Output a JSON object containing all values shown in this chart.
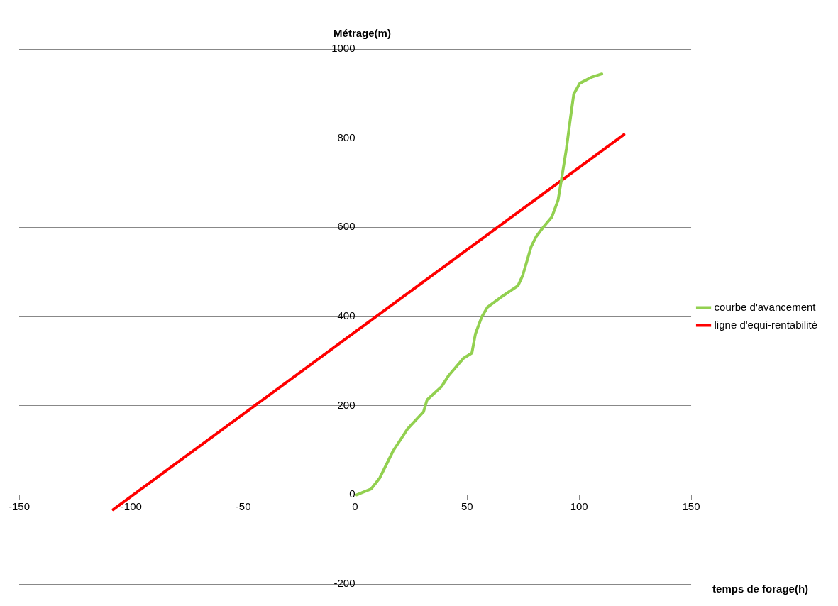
{
  "chart_data": {
    "type": "line",
    "xlabel": "temps de forage(h)",
    "ylabel": "Métrage(m)",
    "xlim": [
      -150,
      150
    ],
    "xticks": [
      -150,
      -100,
      -50,
      0,
      50,
      100,
      150
    ],
    "ylim": [
      -200,
      1000
    ],
    "yticks": [
      -200,
      0,
      200,
      400,
      600,
      800,
      1000
    ],
    "grid": "y",
    "legend": "right",
    "marker": "none",
    "line_style": "solid",
    "series": [
      {
        "name": "courbe d'avancement",
        "color": "#92d050",
        "x": [
          0.7,
          7.1,
          11,
          16.9,
          23.4,
          30.5,
          32.1,
          38.6,
          41.8,
          48.3,
          52.1,
          53.7,
          56.5,
          59.1,
          65.6,
          72.7,
          74.8,
          78.6,
          80.8,
          84.1,
          87.8,
          90.6,
          92.2,
          94.3,
          96,
          97.6,
          100.3,
          105.7,
          110.1
        ],
        "values": [
          0,
          13,
          38,
          98,
          148,
          186,
          213,
          243,
          268,
          306,
          318,
          361,
          399,
          421,
          445,
          469,
          492,
          557,
          579,
          601,
          623,
          661,
          710,
          776,
          841,
          899,
          923,
          937,
          944
        ]
      },
      {
        "name": "ligne d'equi-rentabilité",
        "color": "#ff0000",
        "x": [
          -108,
          120
        ],
        "values": [
          -33,
          808
        ]
      }
    ]
  }
}
